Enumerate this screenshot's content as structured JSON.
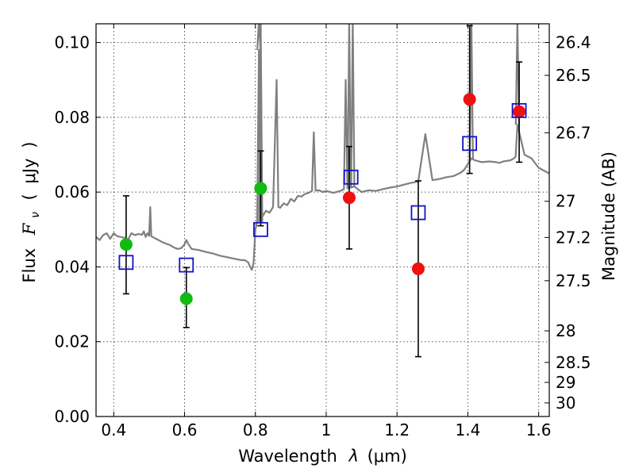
{
  "chart_data": {
    "type": "scatter",
    "xlabel": "Wavelength  λ (μm)",
    "ylabel": "Flux  F_ν ( μJy )",
    "ylabel_parts": {
      "prefix": "Flux",
      "symbol": "F",
      "subscript": "ν",
      "unit_open": "(",
      "unit": "μJy",
      "unit_close": ")"
    },
    "xlabel_parts": {
      "prefix": "Wavelength",
      "symbol": "λ",
      "unit": "(μm)"
    },
    "y2label": "Magnitude (AB)",
    "xlim": [
      0.35,
      1.63
    ],
    "ylim": [
      0.0,
      0.105
    ],
    "grid": true,
    "x_ticks": [
      {
        "v": 0.4,
        "label": "0.4"
      },
      {
        "v": 0.6,
        "label": "0.6"
      },
      {
        "v": 0.8,
        "label": "0.8"
      },
      {
        "v": 1.0,
        "label": "1"
      },
      {
        "v": 1.2,
        "label": "1.2"
      },
      {
        "v": 1.4,
        "label": "1.4"
      },
      {
        "v": 1.6,
        "label": "1.6"
      }
    ],
    "y_ticks": [
      {
        "v": 0.0,
        "label": "0.00"
      },
      {
        "v": 0.02,
        "label": "0.02"
      },
      {
        "v": 0.04,
        "label": "0.04"
      },
      {
        "v": 0.06,
        "label": "0.06"
      },
      {
        "v": 0.08,
        "label": "0.08"
      },
      {
        "v": 0.1,
        "label": "0.10"
      }
    ],
    "mag_ticks": [
      {
        "mag": 26.4,
        "label": "26.4"
      },
      {
        "mag": 26.5,
        "label": "26.5"
      },
      {
        "mag": 26.7,
        "label": "26.7"
      },
      {
        "mag": 27.0,
        "label": "27"
      },
      {
        "mag": 27.2,
        "label": "27.2"
      },
      {
        "mag": 27.5,
        "label": "27.5"
      },
      {
        "mag": 28.0,
        "label": "28"
      },
      {
        "mag": 28.5,
        "label": "28.5"
      },
      {
        "mag": 29.0,
        "label": "29"
      },
      {
        "mag": 30.0,
        "label": "30"
      }
    ],
    "model_spectrum": {
      "name": "model SED",
      "color": "#7f7f7f",
      "points": [
        [
          0.35,
          0.048
        ],
        [
          0.36,
          0.0472
        ],
        [
          0.37,
          0.0485
        ],
        [
          0.38,
          0.049
        ],
        [
          0.39,
          0.0475
        ],
        [
          0.4,
          0.049
        ],
        [
          0.41,
          0.0482
        ],
        [
          0.42,
          0.048
        ],
        [
          0.43,
          0.0478
        ],
        [
          0.44,
          0.0472
        ],
        [
          0.45,
          0.049
        ],
        [
          0.46,
          0.0485
        ],
        [
          0.47,
          0.0488
        ],
        [
          0.48,
          0.0486
        ],
        [
          0.485,
          0.0495
        ],
        [
          0.49,
          0.048
        ],
        [
          0.495,
          0.049
        ],
        [
          0.5,
          0.0483
        ],
        [
          0.503,
          0.056
        ],
        [
          0.506,
          0.0482
        ],
        [
          0.52,
          0.0475
        ],
        [
          0.54,
          0.0465
        ],
        [
          0.56,
          0.0458
        ],
        [
          0.57,
          0.0452
        ],
        [
          0.58,
          0.0448
        ],
        [
          0.59,
          0.045
        ],
        [
          0.6,
          0.046
        ],
        [
          0.605,
          0.0472
        ],
        [
          0.61,
          0.0462
        ],
        [
          0.62,
          0.0448
        ],
        [
          0.64,
          0.0445
        ],
        [
          0.66,
          0.044
        ],
        [
          0.68,
          0.0436
        ],
        [
          0.7,
          0.043
        ],
        [
          0.72,
          0.0426
        ],
        [
          0.74,
          0.0422
        ],
        [
          0.76,
          0.0418
        ],
        [
          0.77,
          0.0418
        ],
        [
          0.78,
          0.0412
        ],
        [
          0.785,
          0.04
        ],
        [
          0.79,
          0.0392
        ],
        [
          0.795,
          0.0412
        ],
        [
          0.8,
          0.05
        ],
        [
          0.805,
          0.052
        ],
        [
          0.81,
          0.098
        ],
        [
          0.815,
          0.052
        ],
        [
          0.82,
          0.0535
        ],
        [
          0.83,
          0.055
        ],
        [
          0.84,
          0.0545
        ],
        [
          0.85,
          0.056
        ],
        [
          0.86,
          0.09
        ],
        [
          0.865,
          0.056
        ],
        [
          0.87,
          0.0558
        ],
        [
          0.88,
          0.057
        ],
        [
          0.89,
          0.0565
        ],
        [
          0.9,
          0.0582
        ],
        [
          0.91,
          0.0575
        ],
        [
          0.92,
          0.059
        ],
        [
          0.93,
          0.0588
        ],
        [
          0.94,
          0.0595
        ],
        [
          0.95,
          0.0598
        ],
        [
          0.96,
          0.0603
        ],
        [
          0.965,
          0.076
        ],
        [
          0.97,
          0.0604
        ],
        [
          0.98,
          0.0605
        ],
        [
          0.99,
          0.06
        ],
        [
          1.0,
          0.0603
        ],
        [
          1.02,
          0.0598
        ],
        [
          1.04,
          0.0603
        ],
        [
          1.05,
          0.0608
        ],
        [
          1.055,
          0.09
        ],
        [
          1.06,
          0.061
        ],
        [
          1.08,
          0.0615
        ],
        [
          1.1,
          0.06
        ],
        [
          1.12,
          0.0605
        ],
        [
          1.14,
          0.0603
        ],
        [
          1.16,
          0.0608
        ],
        [
          1.18,
          0.0612
        ],
        [
          1.2,
          0.0615
        ],
        [
          1.22,
          0.062
        ],
        [
          1.24,
          0.0625
        ],
        [
          1.26,
          0.0628
        ],
        [
          1.28,
          0.0755
        ],
        [
          1.3,
          0.0632
        ],
        [
          1.32,
          0.0635
        ],
        [
          1.34,
          0.064
        ],
        [
          1.36,
          0.0643
        ],
        [
          1.38,
          0.0652
        ],
        [
          1.39,
          0.066
        ],
        [
          1.4,
          0.0675
        ],
        [
          1.41,
          0.069
        ],
        [
          1.42,
          0.0685
        ],
        [
          1.44,
          0.068
        ],
        [
          1.46,
          0.0682
        ],
        [
          1.48,
          0.068
        ],
        [
          1.49,
          0.0678
        ],
        [
          1.5,
          0.0682
        ],
        [
          1.52,
          0.0685
        ],
        [
          1.53,
          0.069
        ],
        [
          1.535,
          0.0695
        ],
        [
          1.54,
          0.078
        ],
        [
          1.56,
          0.07
        ],
        [
          1.58,
          0.069
        ],
        [
          1.6,
          0.0665
        ],
        [
          1.63,
          0.065
        ]
      ],
      "spikes": [
        0.81,
        0.815,
        1.065,
        1.075,
        1.41,
        1.54
      ]
    },
    "series": [
      {
        "name": "green detections",
        "color": "#11bb11",
        "marker": "circle",
        "points": [
          {
            "x": 0.435,
            "y": 0.046
          },
          {
            "x": 0.605,
            "y": 0.0315
          },
          {
            "x": 0.815,
            "y": 0.061
          }
        ]
      },
      {
        "name": "red detections",
        "color": "#ee1111",
        "marker": "circle",
        "points": [
          {
            "x": 1.065,
            "y": 0.0585
          },
          {
            "x": 1.26,
            "y": 0.0395
          },
          {
            "x": 1.405,
            "y": 0.0848
          },
          {
            "x": 1.545,
            "y": 0.0815
          }
        ]
      },
      {
        "name": "model photometry",
        "color": "#1111cc",
        "marker": "open-square",
        "points": [
          {
            "x": 0.435,
            "y": 0.0412
          },
          {
            "x": 0.605,
            "y": 0.0405
          },
          {
            "x": 0.815,
            "y": 0.05
          },
          {
            "x": 1.07,
            "y": 0.064
          },
          {
            "x": 1.26,
            "y": 0.0545
          },
          {
            "x": 1.405,
            "y": 0.073
          },
          {
            "x": 1.545,
            "y": 0.0818
          }
        ]
      }
    ],
    "errorbars": [
      {
        "x": 0.435,
        "low": 0.0328,
        "high": 0.059
      },
      {
        "x": 0.605,
        "low": 0.0238,
        "high": 0.0398
      },
      {
        "x": 0.815,
        "low": 0.051,
        "high": 0.071
      },
      {
        "x": 1.065,
        "low": 0.0448,
        "high": 0.0722
      },
      {
        "x": 1.26,
        "low": 0.016,
        "high": 0.063
      },
      {
        "x": 1.405,
        "low": 0.065,
        "high": 0.1045
      },
      {
        "x": 1.545,
        "low": 0.068,
        "high": 0.0948
      }
    ]
  }
}
